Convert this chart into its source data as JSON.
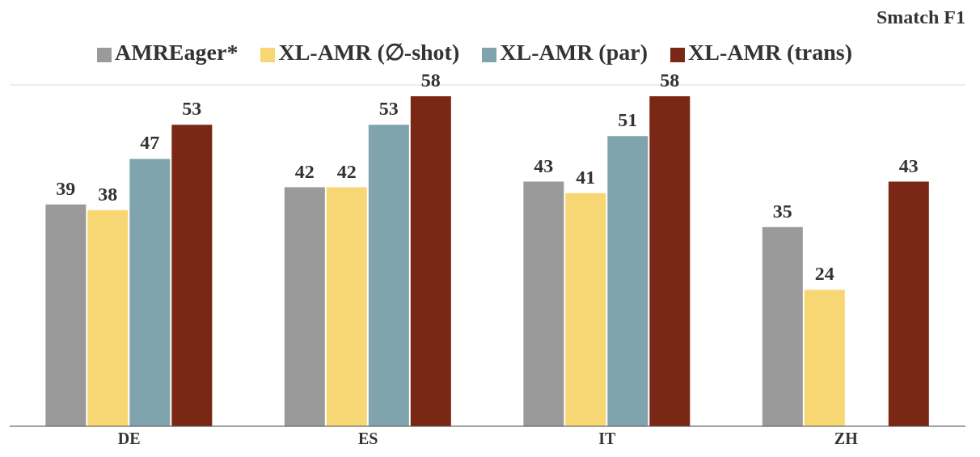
{
  "chart_data": {
    "type": "bar",
    "title": "Smatch F1",
    "categories": [
      "DE",
      "ES",
      "IT",
      "ZH"
    ],
    "series": [
      {
        "name": "AMREager*",
        "color": "#9a9a9a",
        "values": [
          39,
          42,
          43,
          35
        ]
      },
      {
        "name": "XL-AMR (∅-shot)",
        "color": "#f7d774",
        "values": [
          38,
          42,
          41,
          24
        ]
      },
      {
        "name": "XL-AMR (par)",
        "color": "#7fa4ad",
        "values": [
          47,
          53,
          51,
          null
        ]
      },
      {
        "name": "XL-AMR (trans)",
        "color": "#7b2716",
        "values": [
          53,
          58,
          58,
          43
        ]
      }
    ],
    "ylim": [
      0,
      60
    ],
    "tick_labels": "x",
    "grid": "y",
    "legend": "top",
    "data_labels": true
  }
}
